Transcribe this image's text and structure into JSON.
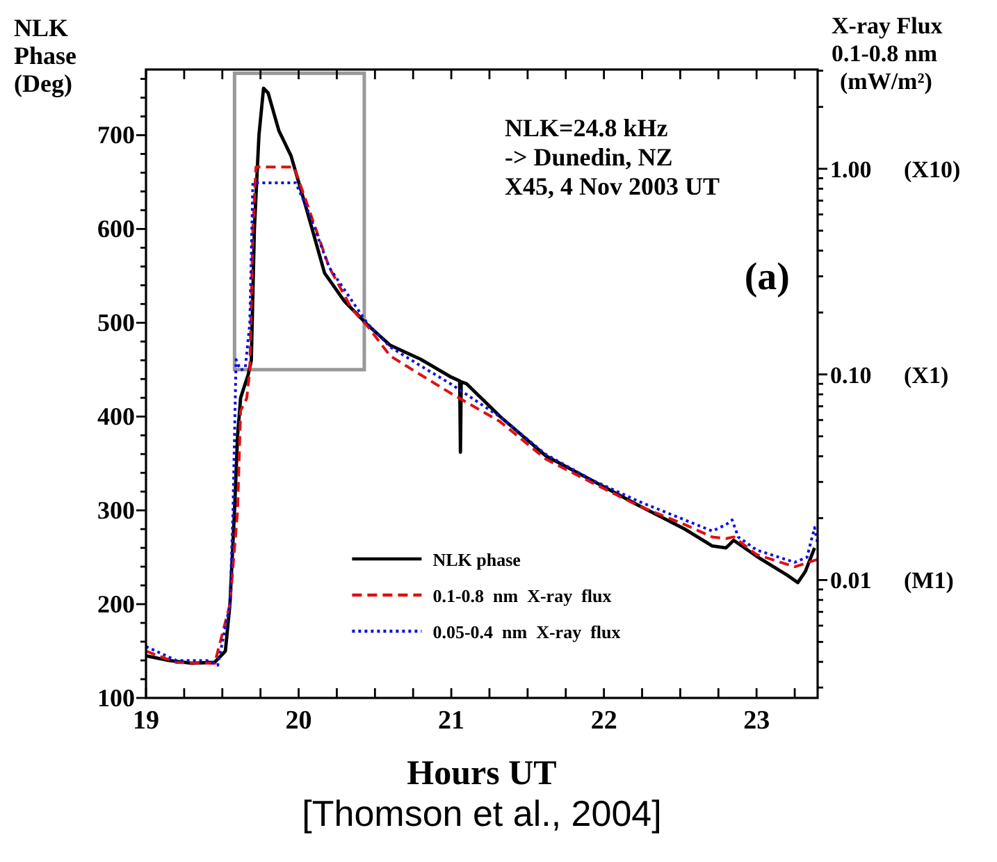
{
  "chart_data": {
    "type": "line",
    "xlabel": "Hours UT",
    "ylabel": "NLK Phase (Deg)",
    "y2label": "X-ray Flux 0.1-0.8 nm (mW/m²)",
    "annotations": [
      "NLK=24.8 kHz",
      "-> Dunedin, NZ",
      "X45, 4 Nov 2003 UT",
      "(a)",
      "[Thomson et al., 2004]",
      "(X10)",
      "(X1)",
      "(M1)"
    ],
    "xlim": [
      19,
      23.4
    ],
    "xticks": [
      19,
      {
        "value": 19.25,
        "label": null
      },
      {
        "value": 19.5,
        "label": null
      },
      {
        "value": 19.75,
        "label": null
      },
      20,
      {
        "value": 20.25,
        "label": null
      },
      {
        "value": 20.5,
        "label": null
      },
      {
        "value": 20.75,
        "label": null
      },
      21,
      {
        "value": 21.25,
        "label": null
      },
      {
        "value": 21.5,
        "label": null
      },
      {
        "value": 21.75,
        "label": null
      },
      22,
      {
        "value": 22.25,
        "label": null
      },
      {
        "value": 22.5,
        "label": null
      },
      {
        "value": 22.75,
        "label": null
      },
      23,
      {
        "value": 23.25,
        "label": null
      }
    ],
    "ylim": [
      100,
      770
    ],
    "yticks": [
      100,
      {
        "value": 120,
        "label": null
      },
      {
        "value": 140,
        "label": null
      },
      {
        "value": 160,
        "label": null
      },
      {
        "value": 180,
        "label": null
      },
      200,
      {
        "value": 220,
        "label": null
      },
      {
        "value": 240,
        "label": null
      },
      {
        "value": 260,
        "label": null
      },
      {
        "value": 280,
        "label": null
      },
      300,
      {
        "value": 320,
        "label": null
      },
      {
        "value": 340,
        "label": null
      },
      {
        "value": 360,
        "label": null
      },
      {
        "value": 380,
        "label": null
      },
      400,
      {
        "value": 420,
        "label": null
      },
      {
        "value": 440,
        "label": null
      },
      {
        "value": 460,
        "label": null
      },
      {
        "value": 480,
        "label": null
      },
      500,
      {
        "value": 520,
        "label": null
      },
      {
        "value": 540,
        "label": null
      },
      {
        "value": 560,
        "label": null
      },
      {
        "value": 580,
        "label": null
      },
      600,
      {
        "value": 620,
        "label": null
      },
      {
        "value": 640,
        "label": null
      },
      {
        "value": 660,
        "label": null
      },
      {
        "value": 680,
        "label": null
      },
      700,
      {
        "value": 720,
        "label": null
      },
      {
        "value": 740,
        "label": null
      },
      {
        "value": 760,
        "label": null
      }
    ],
    "log": "y2",
    "y2lim": [
      0.00267,
      3.04
    ],
    "y2ticks": [
      {
        "value": 0.003,
        "label": null
      },
      {
        "value": 0.004,
        "label": null
      },
      {
        "value": 0.005,
        "label": null
      },
      {
        "value": 0.006,
        "label": null
      },
      {
        "value": 0.007,
        "label": null
      },
      {
        "value": 0.008,
        "label": null
      },
      {
        "value": 0.009,
        "label": null
      },
      {
        "value": 0.01,
        "label": "0.01"
      },
      {
        "value": 0.02,
        "label": null
      },
      {
        "value": 0.03,
        "label": null
      },
      {
        "value": 0.04,
        "label": null
      },
      {
        "value": 0.05,
        "label": null
      },
      {
        "value": 0.06,
        "label": null
      },
      {
        "value": 0.07,
        "label": null
      },
      {
        "value": 0.08,
        "label": null
      },
      {
        "value": 0.09,
        "label": null
      },
      {
        "value": 0.1,
        "label": "0.10"
      },
      {
        "value": 0.2,
        "label": null
      },
      {
        "value": 0.3,
        "label": null
      },
      {
        "value": 0.4,
        "label": null
      },
      {
        "value": 0.5,
        "label": null
      },
      {
        "value": 0.6,
        "label": null
      },
      {
        "value": 0.7,
        "label": null
      },
      {
        "value": 0.8,
        "label": null
      },
      {
        "value": 0.9,
        "label": null
      },
      {
        "value": 1,
        "label": "1.00"
      },
      {
        "value": 2,
        "label": null
      },
      {
        "value": 3,
        "label": null
      }
    ],
    "legend": "bottom",
    "grid": false,
    "series": [
      {
        "name": "NLK phase",
        "color": "#000000",
        "line_style": "solid",
        "x": [
          19,
          19.15,
          19.3,
          19.45,
          19.52,
          19.55,
          19.58,
          19.6,
          19.62,
          19.67,
          19.69,
          19.71,
          19.74,
          19.77,
          19.8,
          19.87,
          19.95,
          20.05,
          20.17,
          20.3,
          20.45,
          20.6,
          20.8,
          21,
          21.055,
          21.06,
          21.065,
          21.1,
          21.32,
          21.62,
          21.92,
          22.23,
          22.53,
          22.71,
          22.8,
          22.85,
          23.01,
          23.2,
          23.27,
          23.32,
          23.38
        ],
        "values": [
          145,
          140,
          137,
          138,
          150,
          200,
          300,
          380,
          420,
          445,
          460,
          600,
          700,
          750,
          745,
          705,
          678,
          622,
          553,
          523,
          498,
          476,
          461,
          442,
          438,
          362,
          437,
          435,
          400,
          358,
          332,
          305,
          280,
          262,
          260,
          268,
          250,
          231,
          223,
          235,
          260
        ]
      },
      {
        "name": "0.1-0.8  nm  X-ray  flux",
        "color": "#dd1111",
        "line_style": "dashed",
        "axis": "y2",
        "x": [
          19,
          19.2,
          19.45,
          19.55,
          19.6,
          19.62,
          19.66,
          19.68,
          19.7,
          19.72,
          19.97,
          20.05,
          20.2,
          20.35,
          20.45,
          20.6,
          20.8,
          21,
          21.32,
          21.62,
          21.92,
          22.23,
          22.53,
          22.71,
          22.8,
          22.85,
          23,
          23.25,
          23.4
        ],
        "values": [
          0.00451,
          0.00397,
          0.00393,
          0.00762,
          0.0217,
          0.0668,
          0.0765,
          0.105,
          0.506,
          1.02,
          1.02,
          0.693,
          0.332,
          0.207,
          0.172,
          0.123,
          0.0995,
          0.0807,
          0.0589,
          0.0387,
          0.0298,
          0.0229,
          0.0186,
          0.0162,
          0.0159,
          0.0162,
          0.0133,
          0.0116,
          0.0126
        ]
      },
      {
        "name": "0.05-0.4  nm  X-ray  flux",
        "color": "#1111dd",
        "line_style": "dotted",
        "axis": "y2",
        "x": [
          19,
          19.2,
          19.4,
          19.47,
          19.55,
          19.57,
          19.59,
          19.62,
          19.65,
          19.68,
          19.7,
          19.98,
          20.05,
          20.2,
          20.45,
          20.6,
          20.8,
          21,
          21.32,
          21.62,
          21.92,
          22.23,
          22.53,
          22.71,
          22.8,
          22.84,
          22.88,
          23,
          23.25,
          23.33,
          23.38,
          23.4
        ],
        "values": [
          0.00475,
          0.00406,
          0.00406,
          0.00385,
          0.00762,
          0.0217,
          0.118,
          0.105,
          0.107,
          0.177,
          0.855,
          0.855,
          0.657,
          0.332,
          0.177,
          0.136,
          0.11,
          0.0896,
          0.0621,
          0.0408,
          0.0307,
          0.0241,
          0.0196,
          0.0173,
          0.0186,
          0.0196,
          0.0162,
          0.014,
          0.0122,
          0.0129,
          0.018,
          0.0151
        ]
      }
    ]
  }
}
